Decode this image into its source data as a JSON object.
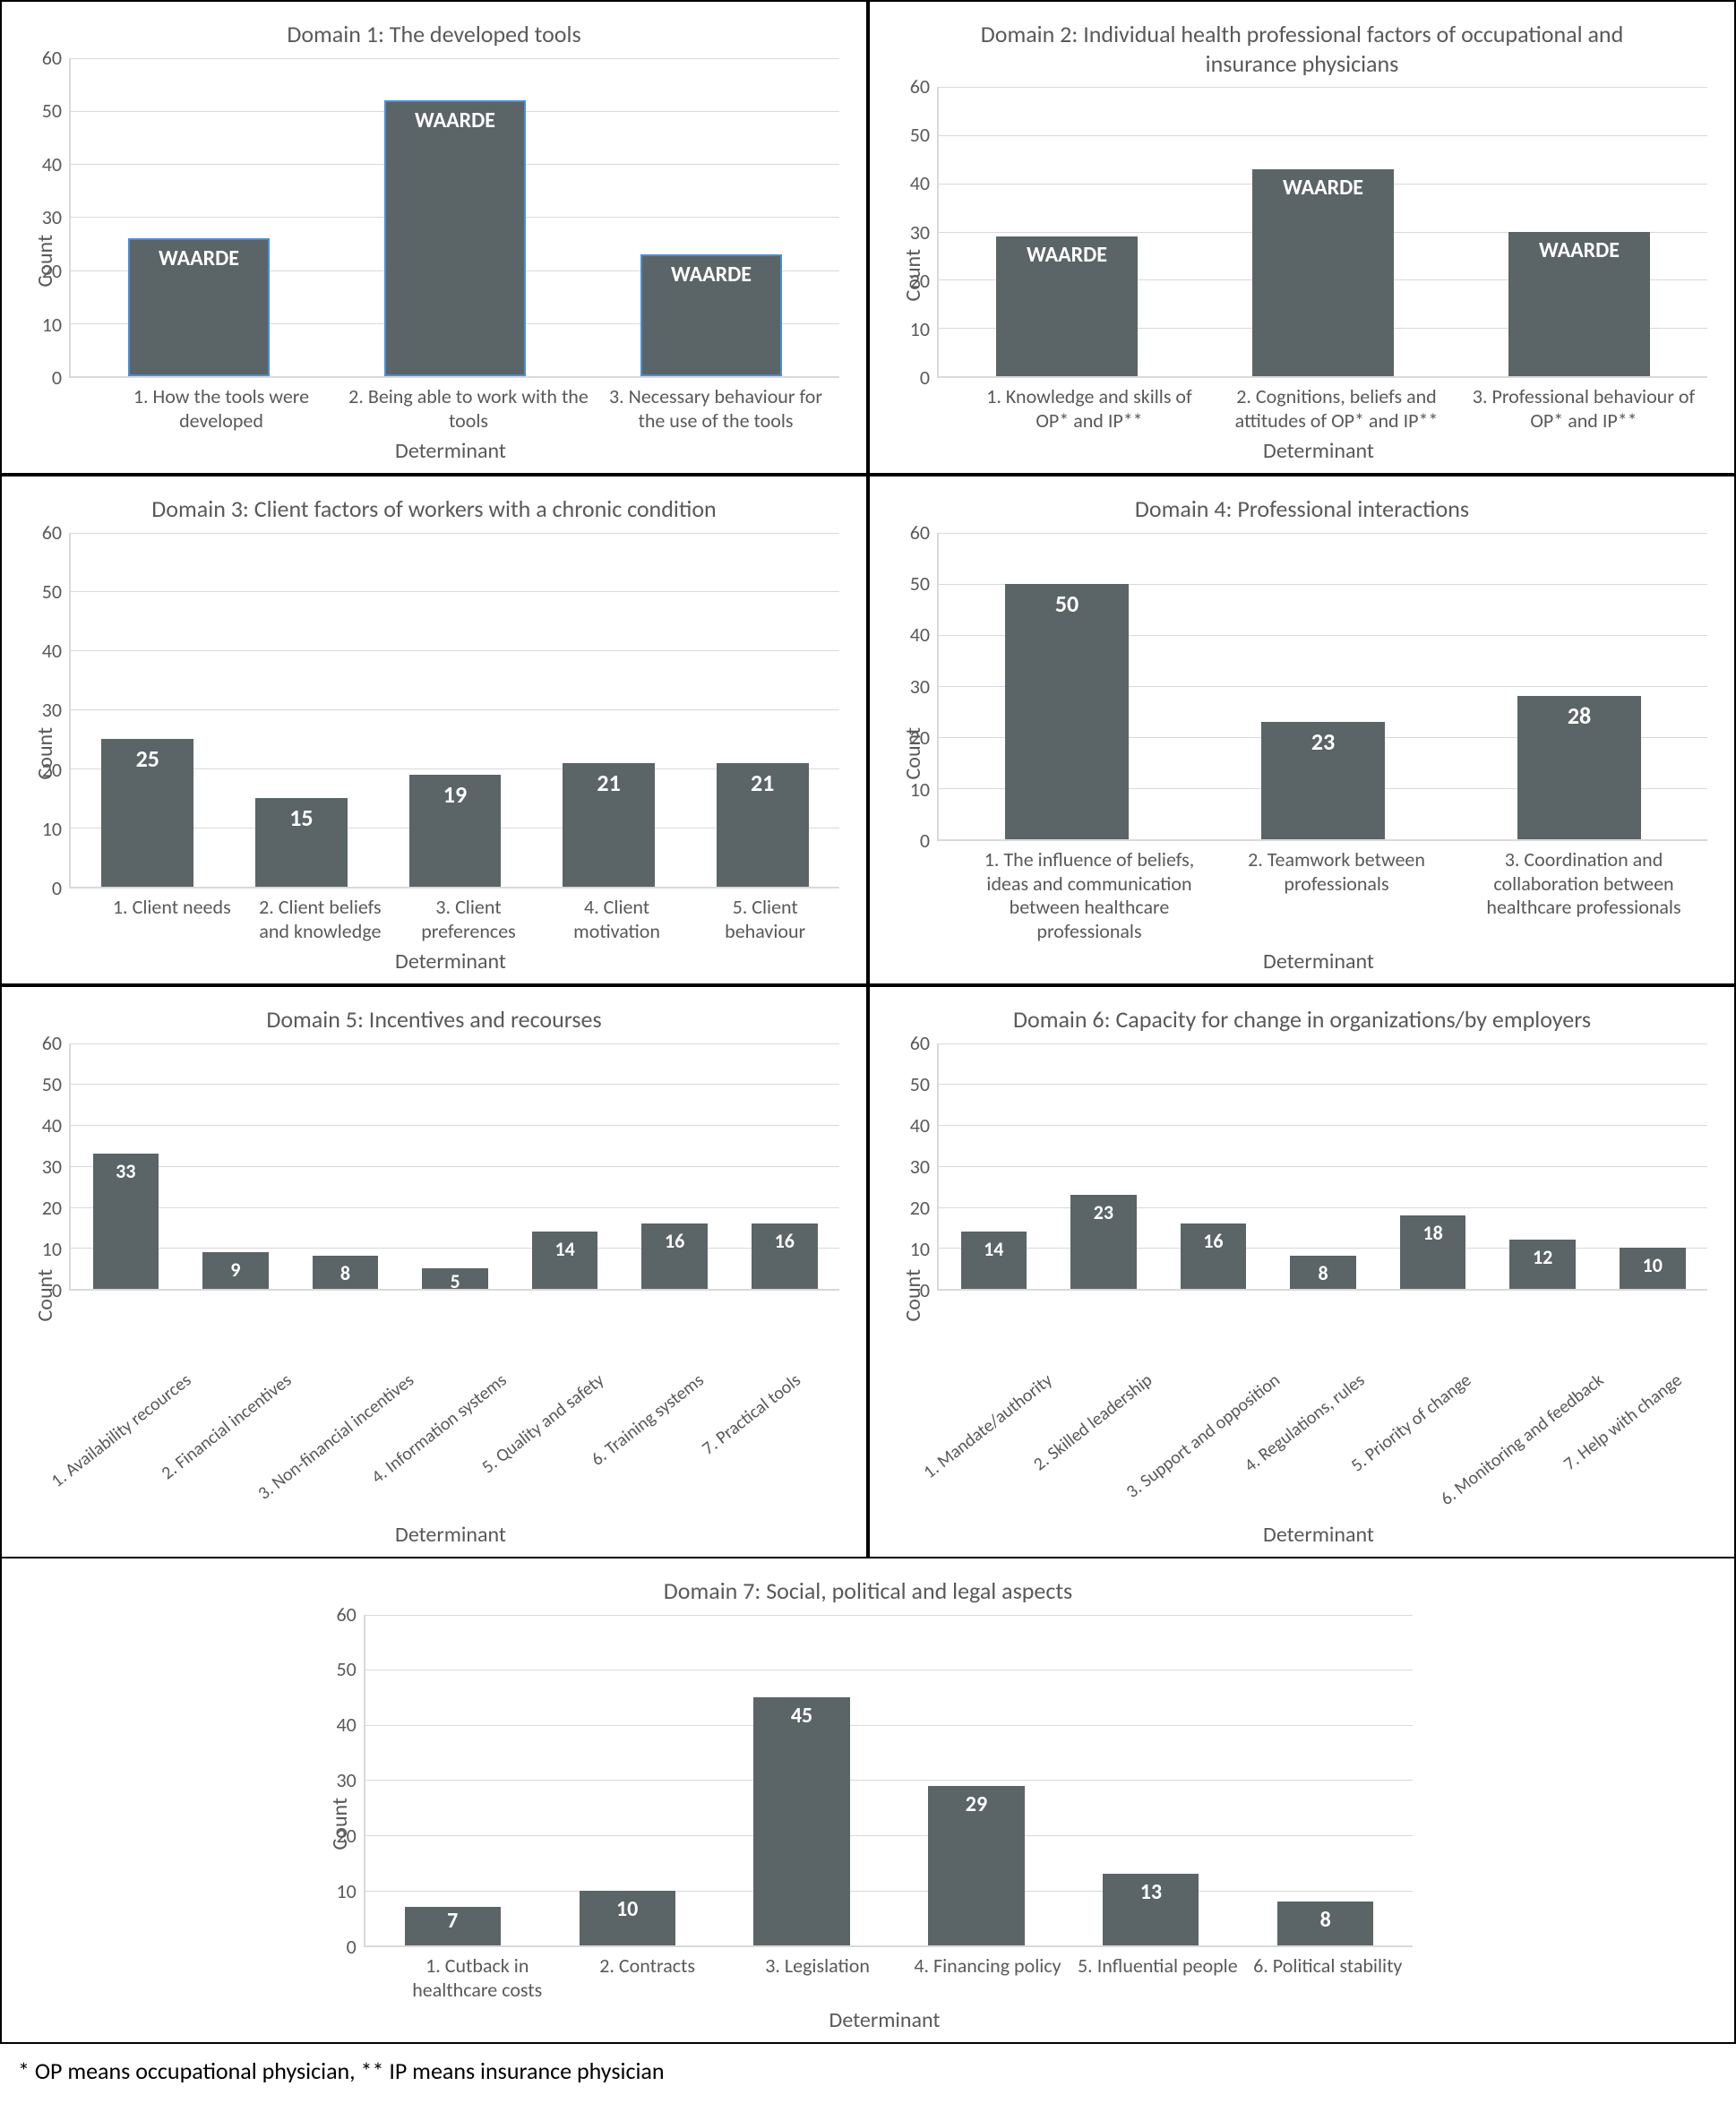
{
  "global": {
    "bar_color": "#5b6466",
    "bar_border_blue": "#4a8fd4",
    "grid_color": "#d9d9d9",
    "text_color": "#595959",
    "value_text_color": "#ffffff",
    "background_color": "#ffffff",
    "y_axis_label": "Count",
    "x_axis_label": "Determinant",
    "ylim": [
      0,
      60
    ],
    "ytick_step": 10,
    "title_fontsize": 26,
    "axis_label_fontsize": 24,
    "tick_fontsize": 22,
    "value_fontsize_large": 26,
    "value_fontsize_small": 22,
    "font_family": "Segoe UI / Calibri"
  },
  "panels": [
    {
      "id": "d1",
      "title": "Domain 1: The developed tools",
      "bar_border": true,
      "bar_width_rel": 0.55,
      "value_fontsize": 24,
      "label_rotate": false,
      "categories": [
        "1. How the tools were developed",
        "2. Being able to work with the tools",
        "3. Necessary behaviour for the use of the tools"
      ],
      "values": [
        26,
        52,
        23
      ],
      "value_labels": [
        "WAARDE",
        "WAARDE",
        "WAARDE"
      ]
    },
    {
      "id": "d2",
      "title": "Domain 2: Individual health professional factors of occupational and insurance physicians",
      "bar_border": false,
      "bar_width_rel": 0.55,
      "value_fontsize": 24,
      "label_rotate": false,
      "categories": [
        "1. Knowledge and skills of OP* and IP**",
        "2. Cognitions, beliefs and attitudes of OP* and IP**",
        "3. Professional behaviour of OP* and IP**"
      ],
      "values": [
        29,
        43,
        30
      ],
      "value_labels": [
        "WAARDE",
        "WAARDE",
        "WAARDE"
      ]
    },
    {
      "id": "d3",
      "title": "Domain 3: Client factors of workers with a chronic condition",
      "bar_border": false,
      "bar_width_rel": 0.6,
      "value_fontsize": 26,
      "label_rotate": false,
      "categories": [
        "1. Client needs",
        "2. Client beliefs and knowledge",
        "3. Client preferences",
        "4. Client motivation",
        "5. Client behaviour"
      ],
      "values": [
        25,
        15,
        19,
        21,
        21
      ],
      "value_labels": [
        "25",
        "15",
        "19",
        "21",
        "21"
      ]
    },
    {
      "id": "d4",
      "title": "Domain 4: Professional interactions",
      "bar_border": false,
      "bar_width_rel": 0.48,
      "value_fontsize": 26,
      "label_rotate": false,
      "categories": [
        "1. The influence of beliefs, ideas and communication between healthcare professionals",
        "2. Teamwork between professionals",
        "3. Coordination and collaboration between healthcare professionals"
      ],
      "values": [
        50,
        23,
        28
      ],
      "value_labels": [
        "50",
        "23",
        "28"
      ]
    },
    {
      "id": "d5",
      "title": "Domain 5: Incentives and recourses",
      "bar_border": false,
      "bar_width_rel": 0.6,
      "value_fontsize": 22,
      "label_rotate": true,
      "categories": [
        "1. Availability recources",
        "2. Financial incentives",
        "3. Non-financial incentives",
        "4. Information systems",
        "5. Quality and safety",
        "6. Training systems",
        "7. Practical tools"
      ],
      "values": [
        33,
        9,
        8,
        5,
        14,
        16,
        16
      ],
      "value_labels": [
        "33",
        "9",
        "8",
        "5",
        "14",
        "16",
        "16"
      ]
    },
    {
      "id": "d6",
      "title": "Domain 6: Capacity for change in organizations/by employers",
      "bar_border": false,
      "bar_width_rel": 0.6,
      "value_fontsize": 22,
      "label_rotate": true,
      "categories": [
        "1. Mandate/authority",
        "2. Skilled leadership",
        "3. Support and opposition",
        "4. Regulations, rules",
        "5. Priority of change",
        "6. Monitoring and feedback",
        "7. Help with change"
      ],
      "values": [
        14,
        23,
        16,
        8,
        18,
        12,
        10
      ],
      "value_labels": [
        "14",
        "23",
        "16",
        "8",
        "18",
        "12",
        "10"
      ]
    },
    {
      "id": "d7",
      "title": "Domain 7: Social, political and legal aspects",
      "bar_border": false,
      "bar_width_rel": 0.55,
      "value_fontsize": 24,
      "label_rotate": false,
      "categories": [
        "1. Cutback in healthcare costs",
        "2. Contracts",
        "3. Legislation",
        "4. Financing policy",
        "5. Influential people",
        "6. Political stability"
      ],
      "values": [
        7,
        10,
        45,
        29,
        13,
        8
      ],
      "value_labels": [
        "7",
        "10",
        "45",
        "29",
        "13",
        "8"
      ]
    }
  ],
  "footnote": "* OP means occupational physician, ** IP means insurance physician"
}
